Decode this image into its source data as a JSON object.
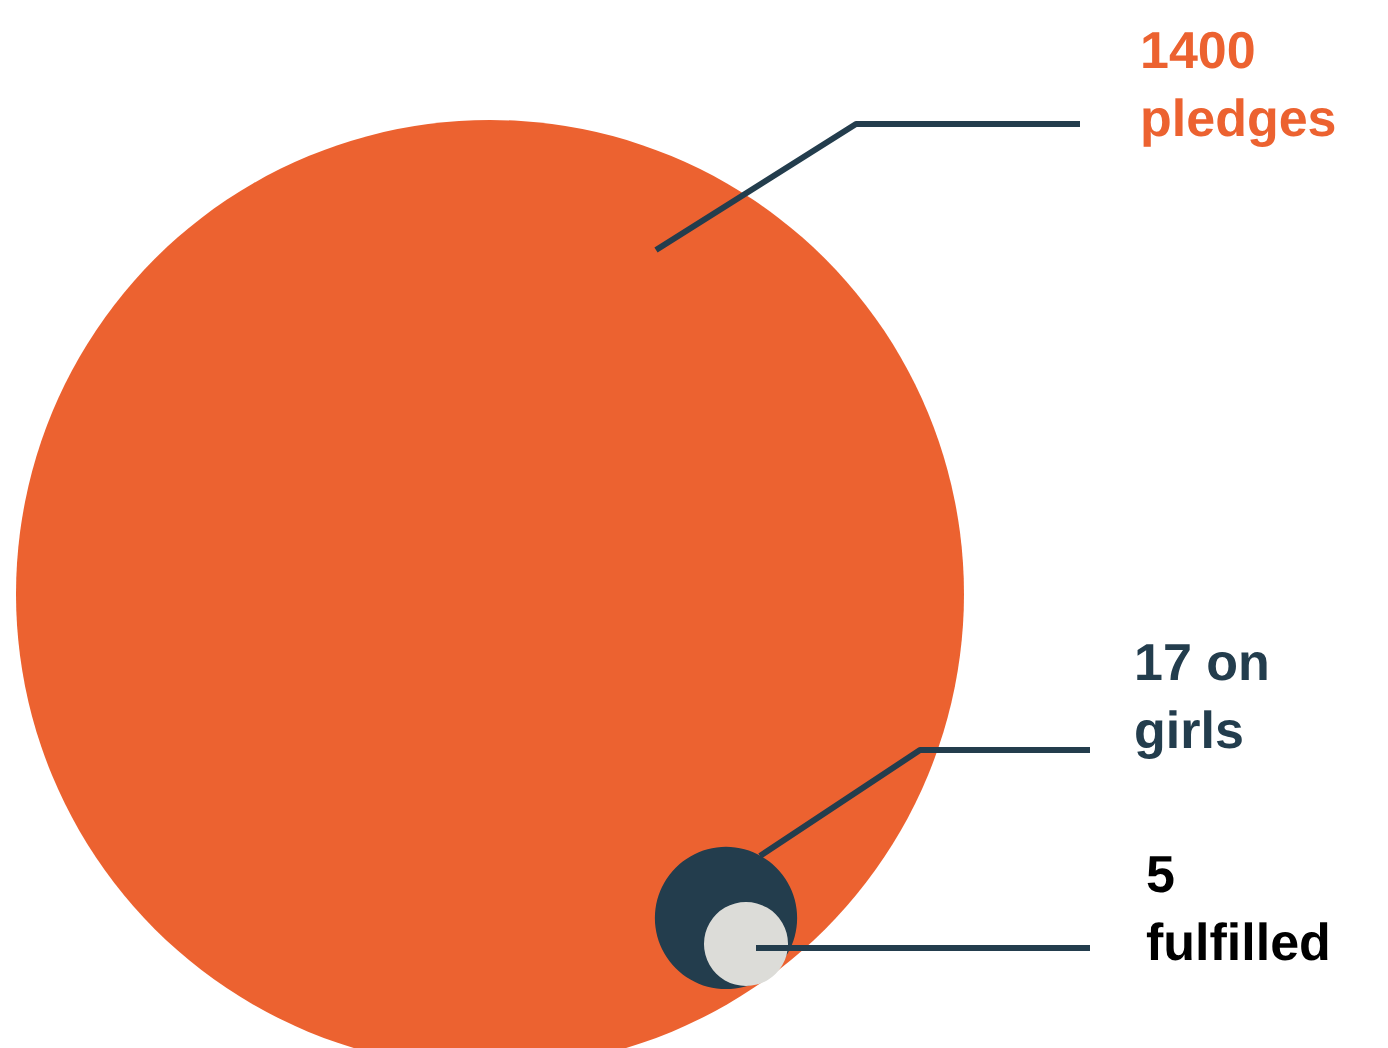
{
  "chart_data": {
    "type": "other",
    "categories": [
      "pledges",
      "on girls",
      "fulfilled"
    ],
    "values": [
      1400,
      17,
      5
    ],
    "data_labels": true,
    "colors": [
      "#ec6230",
      "#233d4d",
      "#dcdcd8"
    ]
  }
}
